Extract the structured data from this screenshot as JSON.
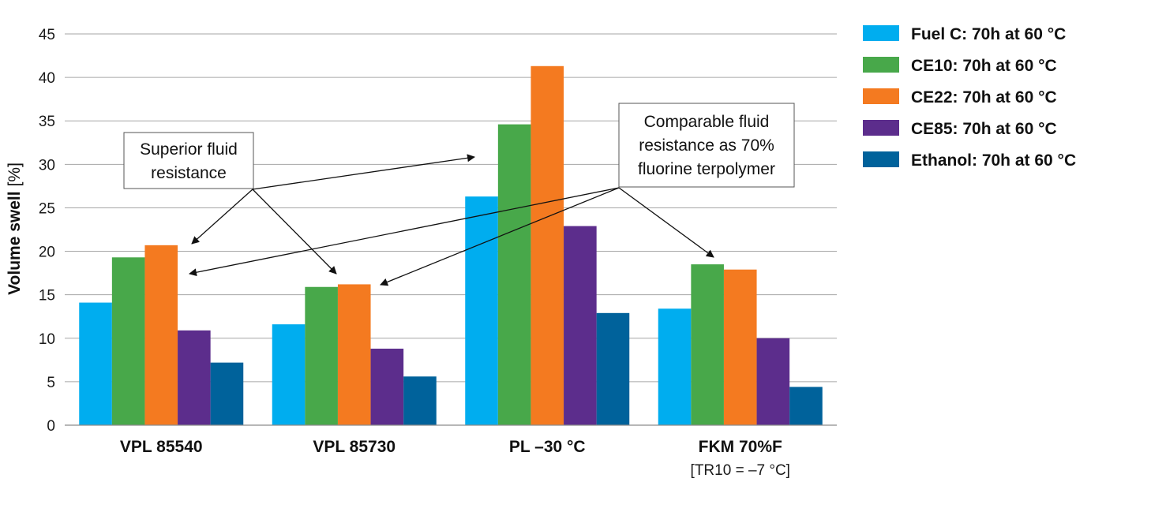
{
  "chart_data": {
    "type": "bar",
    "title": "",
    "xlabel": "",
    "ylabel": "Volume swell",
    "ylabel_unit": "[%]",
    "ylim": [
      0,
      45
    ],
    "yticks": [
      0,
      5,
      10,
      15,
      20,
      25,
      30,
      35,
      40,
      45
    ],
    "grid": true,
    "legend_position": "right",
    "categories": [
      "VPL 85540",
      "VPL 85730",
      "PL –30 °C",
      "FKM 70%F"
    ],
    "category_sublabels": [
      "",
      "",
      "",
      "[TR10 = –7 °C]"
    ],
    "series": [
      {
        "name": "Fuel C: 70h at 60 °C",
        "color": "#00adef",
        "values": [
          14.1,
          11.6,
          26.3,
          13.4
        ]
      },
      {
        "name": "CE10: 70h at 60 °C",
        "color": "#48a84a",
        "values": [
          19.3,
          15.9,
          34.6,
          18.5
        ]
      },
      {
        "name": "CE22: 70h at 60 °C",
        "color": "#f47a20",
        "values": [
          20.7,
          16.2,
          41.3,
          17.9
        ]
      },
      {
        "name": "CE85: 70h at 60 °C",
        "color": "#5c2d8c",
        "values": [
          10.9,
          8.8,
          22.9,
          10.0
        ]
      },
      {
        "name": "Ethanol: 70h at 60 °C",
        "color": "#00629b",
        "values": [
          7.2,
          5.6,
          12.9,
          4.4
        ]
      }
    ],
    "annotations": [
      {
        "id": "superior",
        "lines": [
          "Superior fluid",
          "resistance"
        ]
      },
      {
        "id": "comparable",
        "lines": [
          "Comparable fluid",
          "resistance as 70%",
          "fluorine terpolymer"
        ]
      }
    ]
  }
}
